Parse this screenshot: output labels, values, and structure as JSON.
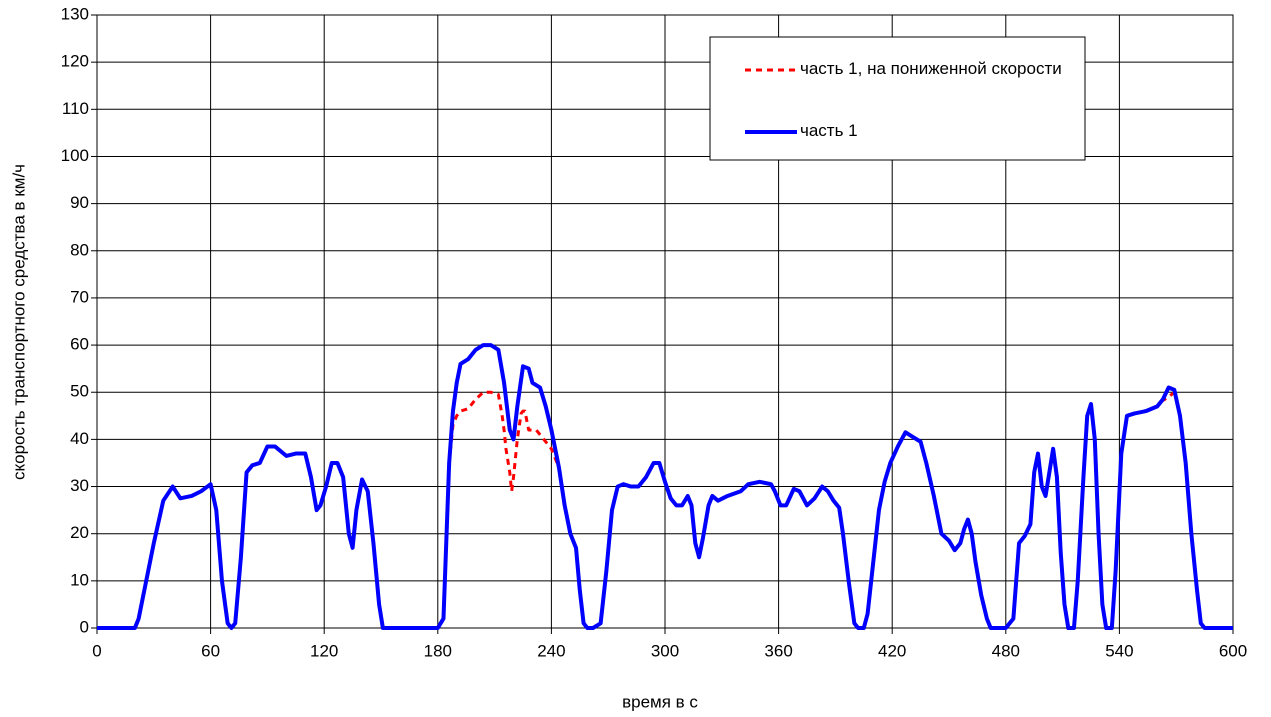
{
  "chart_data": {
    "type": "line",
    "x_label": "время в с",
    "y_label": "скорость транспортного средства в км/ч",
    "xlim": [
      0,
      600
    ],
    "xticks": [
      0,
      60,
      120,
      180,
      240,
      300,
      360,
      420,
      480,
      540,
      600
    ],
    "ylim": [
      0,
      130
    ],
    "yticks": [
      0,
      10,
      20,
      30,
      40,
      50,
      60,
      70,
      80,
      90,
      100,
      110,
      120,
      130
    ],
    "grid": true,
    "legend": "upper right",
    "series": [
      {
        "name": "часть 1, на пониженной скорости",
        "color": "#ff0000",
        "dashed": true,
        "x": [
          186,
          188,
          190,
          192,
          196,
          200,
          204,
          208,
          212,
          214,
          215,
          216,
          218,
          219,
          220,
          222,
          224,
          225,
          226,
          228,
          230,
          232,
          234,
          236,
          237,
          240,
          244,
          247,
          400,
          562,
          566,
          569,
          572,
          575
        ],
        "values": [
          35,
          43,
          45,
          46,
          46.5,
          48.5,
          50,
          50,
          49.5,
          45,
          42,
          38,
          33,
          29,
          32,
          40,
          45.5,
          46,
          46,
          42,
          42,
          42,
          41,
          40,
          39.5,
          38,
          34,
          26,
          null,
          48,
          49,
          50,
          45,
          35
        ]
      },
      {
        "name": "часть 1",
        "color": "#0000ff",
        "dashed": false,
        "x": [
          0,
          10,
          20,
          22,
          25,
          30,
          35,
          40,
          44,
          50,
          55,
          60,
          63,
          66,
          69,
          71,
          73,
          76,
          79,
          82,
          86,
          90,
          94,
          100,
          105,
          110,
          113,
          116,
          118,
          121,
          124,
          127,
          130,
          133,
          135,
          137,
          140,
          143,
          146,
          149,
          151,
          160,
          170,
          180,
          183,
          186,
          188,
          190,
          192,
          196,
          200,
          204,
          208,
          212,
          215,
          218,
          220,
          222,
          225,
          228,
          230,
          234,
          237,
          240,
          244,
          247,
          250,
          253,
          255,
          257,
          259,
          262,
          266,
          269,
          272,
          275,
          278,
          282,
          286,
          290,
          294,
          297,
          300,
          303,
          306,
          309,
          312,
          314,
          316,
          318,
          320,
          323,
          325,
          328,
          333,
          340,
          344,
          350,
          356,
          358,
          361,
          364,
          368,
          371,
          375,
          379,
          383,
          386,
          389,
          392,
          394,
          397,
          400,
          402,
          405,
          407,
          410,
          413,
          416,
          419,
          423,
          427,
          431,
          435,
          438,
          442,
          446,
          450,
          453,
          456,
          458,
          460,
          462,
          464,
          467,
          470,
          472,
          480,
          484,
          487,
          490,
          493,
          495,
          497,
          499,
          501,
          503,
          505,
          507,
          509,
          511,
          513,
          516,
          518,
          521,
          523,
          525,
          527,
          529,
          531,
          533,
          536,
          538,
          541,
          544,
          548,
          554,
          560,
          563,
          566,
          569,
          572,
          575,
          578,
          581,
          583,
          585,
          590,
          600
        ],
        "values": [
          0,
          0,
          0,
          2,
          8,
          18,
          27,
          30,
          27.5,
          28,
          29,
          30.5,
          25,
          10,
          1,
          0,
          1,
          15,
          33,
          34.5,
          35,
          38.5,
          38.5,
          36.5,
          37,
          37,
          32,
          25,
          26,
          30,
          35,
          35,
          32,
          20,
          17,
          25,
          31.5,
          29,
          18,
          5,
          0,
          0,
          0,
          0,
          2,
          35,
          46,
          52,
          56,
          57,
          59,
          60,
          60,
          59,
          52,
          42,
          40,
          47,
          55.5,
          55,
          52,
          51,
          47,
          42,
          34,
          26,
          20,
          17,
          8,
          1,
          0,
          0,
          1,
          12,
          25,
          30,
          30.5,
          30,
          30,
          32,
          35,
          35,
          31,
          27.5,
          26,
          26,
          28,
          26,
          18,
          15,
          19,
          26,
          28,
          27,
          28,
          29,
          30.5,
          31,
          30.5,
          29,
          26,
          26,
          29.5,
          29,
          26,
          27.5,
          30,
          29,
          27,
          25.5,
          20,
          10,
          1,
          0,
          0,
          3,
          14,
          25,
          31,
          35,
          38.5,
          41.5,
          40.5,
          39.5,
          35,
          28,
          20,
          18.5,
          16.5,
          18,
          21,
          23,
          20,
          14,
          7,
          2,
          0,
          0,
          2,
          18,
          19.5,
          22,
          33,
          37,
          30,
          28,
          33,
          38,
          32,
          16,
          5,
          0,
          0,
          10,
          32,
          45,
          47.5,
          40,
          20,
          5,
          0,
          0,
          12,
          37,
          45,
          45.5,
          46,
          47,
          48.5,
          51,
          50.5,
          45,
          35,
          20,
          8,
          1,
          0,
          0,
          0
        ]
      }
    ]
  }
}
